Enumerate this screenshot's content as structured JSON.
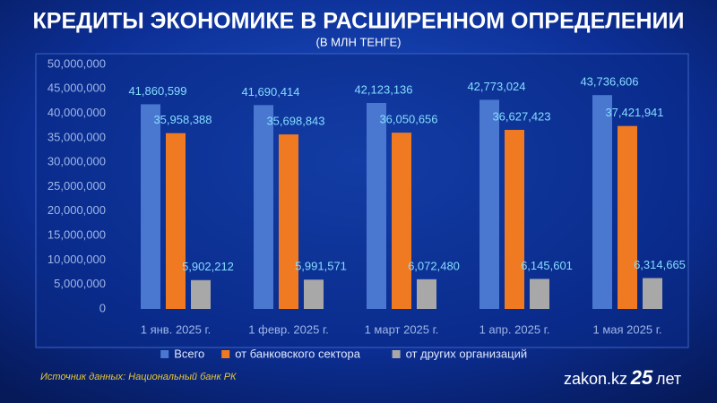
{
  "chart_data": {
    "type": "bar",
    "title": "КРЕДИТЫ ЭКОНОМИКЕ В РАСШИРЕННОМ ОПРЕДЕЛЕНИИ",
    "subtitle": "(В МЛН ТЕНГЕ)",
    "categories": [
      "1 янв. 2025 г.",
      "1 февр. 2025 г.",
      "1 март 2025 г.",
      "1 апр. 2025 г.",
      "1 мая 2025 г."
    ],
    "series": [
      {
        "name": "Всего",
        "color": "#4a78d0",
        "values": [
          41860599,
          41690414,
          42123136,
          42773024,
          43736606
        ],
        "value_labels": [
          "41,860,599",
          "41,690,414",
          "42,123,136",
          "42,773,024",
          "43,736,606"
        ]
      },
      {
        "name": "от банковского сектора",
        "color": "#f07a22",
        "values": [
          35958388,
          35698843,
          36050656,
          36627423,
          37421941
        ],
        "value_labels": [
          "35,958,388",
          "35,698,843",
          "36,050,656",
          "36,627,423",
          "37,421,941"
        ]
      },
      {
        "name": "от других организаций",
        "color": "#a8a8a8",
        "values": [
          5902212,
          5991571,
          6072480,
          6145601,
          6314665
        ],
        "value_labels": [
          "5,902,212",
          "5,991,571",
          "6,072,480",
          "6,145,601",
          "6,314,665"
        ]
      }
    ],
    "ylim": [
      0,
      50000000
    ],
    "yticks": [
      0,
      {
        "value": 5000000,
        "label": "5,000,000"
      },
      {
        "value": 10000000,
        "label": "10,000,000"
      },
      {
        "value": 15000000,
        "label": "15,000,000"
      },
      {
        "value": 20000000,
        "label": "20,000,000"
      },
      {
        "value": 25000000,
        "label": "25,000,000"
      },
      {
        "value": 30000000,
        "label": "30,000,000"
      },
      {
        "value": 35000000,
        "label": "35,000,000"
      },
      {
        "value": 40000000,
        "label": "40,000,000"
      },
      {
        "value": 45000000,
        "label": "45,000,000"
      },
      {
        "value": 50000000,
        "label": "50,000,000"
      }
    ],
    "grid": false,
    "legend": "bottom"
  },
  "footer": {
    "source": "Источник данных: Национальный банк РК",
    "brand": "zakon.kz",
    "anniversary": "25",
    "anniversary_suffix": "лет"
  }
}
